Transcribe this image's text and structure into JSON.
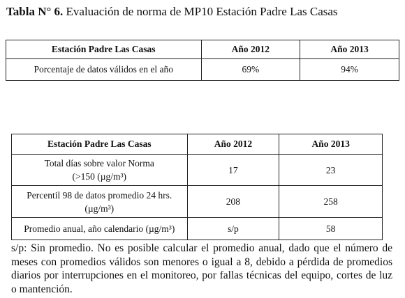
{
  "title": {
    "label": "Tabla N° 6.",
    "text": " Evaluación de norma de MP10 Estación Padre Las Casas"
  },
  "table1": {
    "header": [
      "Estación Padre Las Casas",
      "Año 2012",
      "Año 2013"
    ],
    "rows": [
      [
        "Porcentaje de datos válidos en el año",
        "69%",
        "94%"
      ]
    ]
  },
  "table2": {
    "header": [
      "Estación Padre Las Casas",
      "Año 2012",
      "Año 2013"
    ],
    "rows": [
      [
        [
          "Total días sobre valor Norma",
          "(>150 (µg/m³)"
        ],
        "17",
        "23"
      ],
      [
        [
          "Percentil 98 de datos promedio 24 hrs.",
          "(µg/m³)"
        ],
        "208",
        "258"
      ],
      [
        [
          "Promedio anual, año calendario (µg/m³)"
        ],
        "s/p",
        "58"
      ]
    ]
  },
  "note": "s/p: Sin promedio. No es posible calcular el promedio anual, dado que el número de meses con promedios válidos son menores o igual a 8, debido a pérdida de promedios diarios por interrupciones en el monitoreo, por fallas técnicas del equipo, cortes de luz o mantención."
}
